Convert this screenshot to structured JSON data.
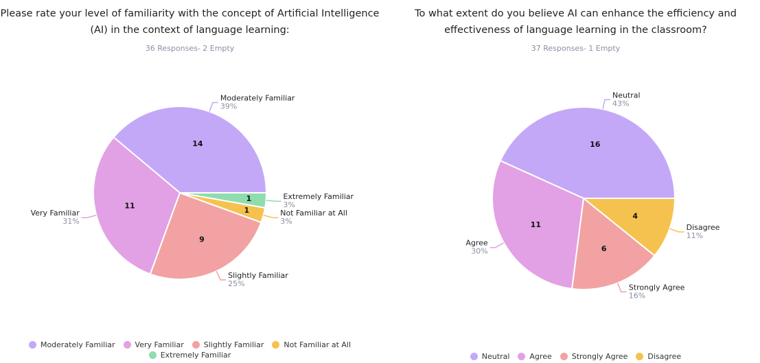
{
  "chart_data": [
    {
      "type": "pie",
      "title": "Please rate your level of familiarity with the concept of Artificial Intelligence (AI) in the context of language learning:",
      "subtitle": "36 Responses- 2 Empty",
      "categories": [
        "Moderately Familiar",
        "Very Familiar",
        "Slightly Familiar",
        "Not Familiar at All",
        "Extremely Familiar"
      ],
      "values": [
        14,
        11,
        9,
        1,
        1
      ],
      "percent_labels": [
        "39%",
        "31%",
        "25%",
        "3%",
        "3%"
      ],
      "colors": [
        "#c4a8f8",
        "#e2a1e4",
        "#f2a2a2",
        "#f6c24f",
        "#8fdcae"
      ]
    },
    {
      "type": "pie",
      "title": "To what extent do you believe AI can enhance the efficiency and effectiveness of language learning in the classroom?",
      "subtitle": "37 Responses- 1 Empty",
      "categories": [
        "Neutral",
        "Agree",
        "Strongly Agree",
        "Disagree"
      ],
      "values": [
        16,
        11,
        6,
        4
      ],
      "percent_labels": [
        "43%",
        "30%",
        "16%",
        "11%"
      ],
      "colors": [
        "#c4a8f8",
        "#e2a1e4",
        "#f2a2a2",
        "#f6c24f"
      ]
    }
  ]
}
